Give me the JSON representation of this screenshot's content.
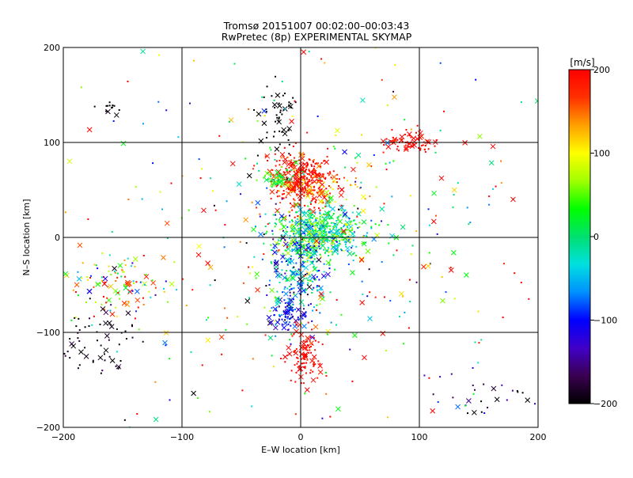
{
  "chart_data": {
    "type": "scatter",
    "title": "Tromsø 20151007 00:02:00–00:03:43",
    "subtitle": "RwPretec (8p) EXPERIMENTAL SKYMAP",
    "xlabel": "E–W location [km]",
    "ylabel": "N–S location [km]",
    "xlim": [
      -200,
      200
    ],
    "ylim": [
      -200,
      200
    ],
    "x_ticks": [
      -200,
      -100,
      0,
      100,
      200
    ],
    "y_ticks": [
      -200,
      -100,
      0,
      100,
      200
    ],
    "x_tick_labels": [
      "−200",
      "−100",
      "0",
      "100",
      "200"
    ],
    "y_tick_labels": [
      "−200",
      "−100",
      "0",
      "100",
      "200"
    ],
    "grid": true,
    "colorbar": {
      "title": "[m/s]",
      "range": [
        -200,
        200
      ],
      "ticks": [
        200,
        100,
        0,
        -100,
        -200
      ],
      "tick_labels": [
        "200",
        "100",
        "0",
        "−100",
        "−200"
      ],
      "colors": [
        "#000000",
        "#3a0050",
        "#4000c8",
        "#0000ff",
        "#0090ff",
        "#00e0e0",
        "#00e070",
        "#00ff00",
        "#a0ff00",
        "#ffff00",
        "#ffa000",
        "#ff3000",
        "#ff0000"
      ]
    },
    "markers": {
      "dot": "meteor/point echo",
      "cross": "larger echo"
    },
    "clusters": [
      {
        "cx": 0,
        "cy": 60,
        "sx": 14,
        "sy": 14,
        "n": 360,
        "v": 190,
        "vs": 20
      },
      {
        "cx": -20,
        "cy": 62,
        "sx": 6,
        "sy": 5,
        "n": 50,
        "v": 30,
        "vs": 20
      },
      {
        "cx": 10,
        "cy": 50,
        "sx": 20,
        "sy": 8,
        "n": 60,
        "v": 120,
        "vs": 25
      },
      {
        "cx": 15,
        "cy": 5,
        "sx": 20,
        "sy": 14,
        "n": 520,
        "v": 10,
        "vs": 50
      },
      {
        "cx": 0,
        "cy": -30,
        "sx": 12,
        "sy": 28,
        "n": 280,
        "v": -50,
        "vs": 60
      },
      {
        "cx": -12,
        "cy": -80,
        "sx": 9,
        "sy": 10,
        "n": 80,
        "v": -100,
        "vs": 30
      },
      {
        "cx": 5,
        "cy": -125,
        "sx": 7,
        "sy": 15,
        "n": 110,
        "v": 195,
        "vs": 10
      },
      {
        "cx": 95,
        "cy": 98,
        "sx": 12,
        "sy": 6,
        "n": 70,
        "v": 195,
        "vs": 10
      },
      {
        "cx": -18,
        "cy": 130,
        "sx": 8,
        "sy": 18,
        "n": 50,
        "v": -200,
        "vs": 5
      },
      {
        "cx": -155,
        "cy": -50,
        "sx": 22,
        "sy": 18,
        "n": 110,
        "v": 60,
        "vs": 120
      },
      {
        "cx": -170,
        "cy": -110,
        "sx": 18,
        "sy": 20,
        "n": 60,
        "v": -190,
        "vs": 15
      },
      {
        "cx": -160,
        "cy": 135,
        "sx": 5,
        "sy": 5,
        "n": 14,
        "v": -200,
        "vs": 5
      },
      {
        "cx": 150,
        "cy": -165,
        "sx": 30,
        "sy": 15,
        "n": 30,
        "v": -160,
        "vs": 40
      },
      {
        "cx": 0,
        "cy": 0,
        "sx": 110,
        "sy": 110,
        "n": 420,
        "v": 60,
        "vs": 130
      }
    ]
  }
}
